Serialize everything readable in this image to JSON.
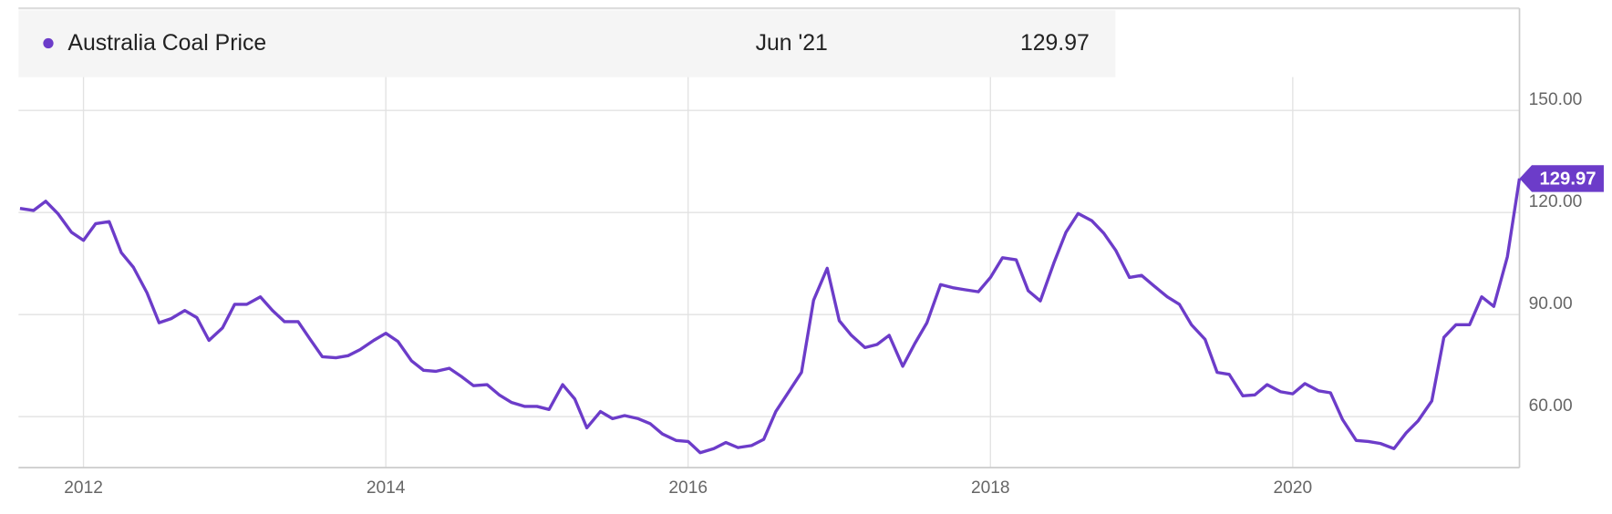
{
  "chart_data": {
    "type": "line",
    "tooltip": {
      "date": "Jun '21"
    },
    "x": [
      2011.58,
      2011.67,
      2011.75,
      2011.83,
      2011.92,
      2012.0,
      2012.08,
      2012.17,
      2012.25,
      2012.33,
      2012.42,
      2012.5,
      2012.58,
      2012.67,
      2012.75,
      2012.83,
      2012.92,
      2013.0,
      2013.08,
      2013.17,
      2013.25,
      2013.33,
      2013.42,
      2013.5,
      2013.58,
      2013.67,
      2013.75,
      2013.83,
      2013.92,
      2014.0,
      2014.08,
      2014.17,
      2014.25,
      2014.33,
      2014.42,
      2014.5,
      2014.58,
      2014.67,
      2014.75,
      2014.83,
      2014.92,
      2015.0,
      2015.08,
      2015.17,
      2015.25,
      2015.33,
      2015.42,
      2015.5,
      2015.58,
      2015.67,
      2015.75,
      2015.83,
      2015.92,
      2016.0,
      2016.08,
      2016.17,
      2016.25,
      2016.33,
      2016.42,
      2016.5,
      2016.58,
      2016.67,
      2016.75,
      2016.83,
      2016.92,
      2017.0,
      2017.08,
      2017.17,
      2017.25,
      2017.33,
      2017.42,
      2017.5,
      2017.58,
      2017.67,
      2017.75,
      2017.83,
      2017.92,
      2018.0,
      2018.08,
      2018.17,
      2018.25,
      2018.33,
      2018.42,
      2018.5,
      2018.58,
      2018.67,
      2018.75,
      2018.83,
      2018.92,
      2019.0,
      2019.08,
      2019.17,
      2019.25,
      2019.33,
      2019.42,
      2019.5,
      2019.58,
      2019.67,
      2019.75,
      2019.83,
      2019.92,
      2020.0,
      2020.08,
      2020.17,
      2020.25,
      2020.33,
      2020.42,
      2020.5,
      2020.58,
      2020.67,
      2020.75,
      2020.83,
      2020.92,
      2021.0,
      2021.08,
      2021.17,
      2021.25,
      2021.33,
      2021.42,
      2021.5
    ],
    "series": [
      {
        "name": "Australia Coal Price",
        "color": "#6c3cc9",
        "values": [
          121.2,
          120.6,
          123.3,
          119.7,
          114.2,
          111.8,
          116.7,
          117.3,
          108.2,
          103.9,
          96.4,
          87.6,
          88.8,
          91.2,
          89.1,
          82.4,
          86.1,
          93.0,
          93.0,
          95.2,
          91.2,
          87.9,
          87.9,
          82.7,
          77.6,
          77.3,
          77.9,
          79.7,
          82.4,
          84.5,
          82.1,
          76.4,
          73.6,
          73.3,
          74.2,
          71.8,
          69.1,
          69.4,
          66.4,
          64.2,
          63.0,
          63.0,
          62.1,
          69.4,
          65.2,
          56.7,
          61.5,
          59.4,
          60.3,
          59.4,
          57.9,
          54.9,
          53.0,
          52.7,
          49.4,
          50.6,
          52.4,
          50.9,
          51.5,
          53.3,
          61.5,
          67.6,
          73.0,
          94.2,
          103.6,
          88.2,
          83.9,
          80.3,
          81.2,
          83.9,
          74.8,
          81.5,
          87.6,
          98.8,
          97.9,
          97.3,
          96.7,
          100.9,
          106.7,
          106.1,
          97.0,
          94.0,
          105.2,
          114.2,
          119.7,
          117.6,
          113.9,
          108.8,
          100.9,
          101.5,
          98.5,
          95.2,
          93.0,
          87.0,
          82.7,
          73.0,
          72.4,
          66.1,
          66.4,
          69.4,
          67.3,
          66.7,
          69.7,
          67.6,
          67.0,
          59.1,
          53.0,
          52.7,
          52.1,
          50.6,
          55.2,
          58.8,
          64.6,
          83.3,
          87.0,
          87.0,
          95.2,
          92.4,
          107.0,
          129.97
        ]
      }
    ],
    "xlim": [
      2011.57,
      2021.5
    ],
    "xticks": [
      2012,
      2014,
      2016,
      2018,
      2020
    ],
    "ylim": [
      45,
      180
    ],
    "yticks": [
      {
        "value": 60,
        "label": "60.00"
      },
      {
        "value": 90,
        "label": "90.00"
      },
      {
        "value": 120,
        "label": "120.00"
      },
      {
        "value": 150,
        "label": "150.00"
      }
    ],
    "grid": true
  }
}
